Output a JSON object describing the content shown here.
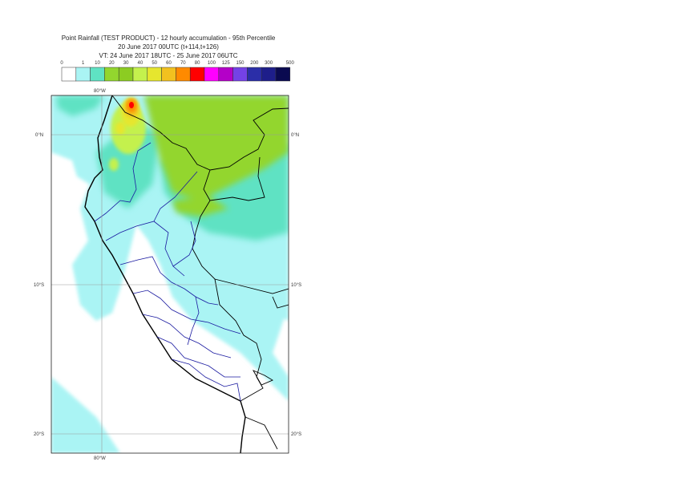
{
  "title": {
    "line1": "Point Rainfall (TEST PRODUCT) - 12 hourly accumulation - 95th Percentile",
    "line2": "20 June 2017 00UTC (t+114,t+126)",
    "line3": "VT: 24 June 2017 18UTC - 25 June 2017 06UTC"
  },
  "legend": {
    "thresholds": [
      "0",
      "1",
      "10",
      "20",
      "30",
      "40",
      "50",
      "60",
      "70",
      "80",
      "100",
      "125",
      "150",
      "200",
      "300",
      "500"
    ],
    "colors": [
      "#ffffff",
      "#aaf4f4",
      "#5fe2c3",
      "#93d62e",
      "#8ccc22",
      "#c4f14d",
      "#e6e62e",
      "#f2c11f",
      "#ff8a00",
      "#ff0000",
      "#ff00ff",
      "#b400c8",
      "#7442e6",
      "#2b2ea8",
      "#1e1e8a",
      "#0a0a50"
    ]
  },
  "map": {
    "lat_labels": [
      "0°N",
      "10°S",
      "20°S"
    ],
    "lon_labels": [
      "80°W"
    ]
  }
}
